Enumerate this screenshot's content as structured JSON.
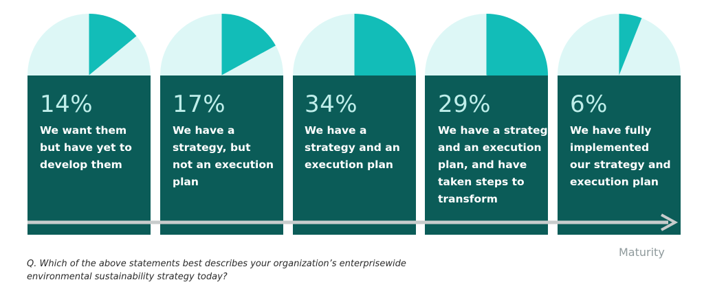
{
  "chart_data": {
    "type": "pie",
    "categories": [
      "We want them but have yet to develop them",
      "We have a strategy, but not an execution plan",
      "We have a strategy and an execution plan",
      "We have a strategy and an execution plan, and have taken steps to transform",
      "We have fully implemented our strategy and execution plan"
    ],
    "values": [
      14,
      17,
      34,
      29,
      6
    ],
    "value_labels": [
      "14%",
      "17%",
      "34%",
      "29%",
      "6%"
    ],
    "xlabel": "Maturity",
    "note": "Q. Which of the above statements best describes your organization’s enterprisewide environmental sustainability strategy today?"
  },
  "cards": [
    {
      "pct": "14%",
      "lines": [
        "We want them",
        "but have yet to",
        "develop them"
      ]
    },
    {
      "pct": "17%",
      "lines": [
        "We have a",
        "strategy, but",
        "not an execution",
        "plan"
      ]
    },
    {
      "pct": "34%",
      "lines": [
        "We have a",
        "strategy and an",
        "execution plan"
      ]
    },
    {
      "pct": "29%",
      "lines": [
        "We have a strategy",
        "and an execution",
        "plan, and have",
        "taken steps to",
        "transform"
      ]
    },
    {
      "pct": "6%",
      "lines": [
        "We have fully",
        "implemented",
        "our strategy and",
        "execution plan"
      ]
    }
  ],
  "colors": {
    "card": "#0b5c58",
    "pie_bg": "#ddf7f6",
    "pie_slice": "#12bdb8",
    "arrow": "#c8cccc",
    "pct_text": "#bfeeea"
  }
}
